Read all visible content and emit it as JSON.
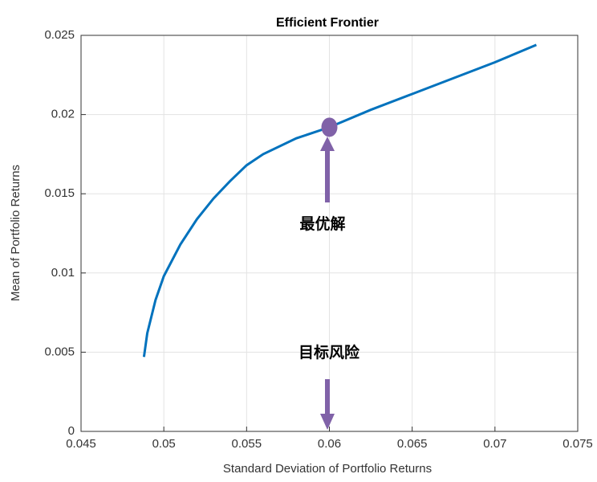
{
  "chart_data": {
    "type": "line",
    "title": "Efficient Frontier",
    "xlabel": "Standard Deviation of Portfolio Returns",
    "ylabel": "Mean of Portfolio Returns",
    "x": [
      0.0488,
      0.049,
      0.0495,
      0.05,
      0.051,
      0.052,
      0.053,
      0.054,
      0.055,
      0.056,
      0.058,
      0.06,
      0.0625,
      0.065,
      0.0675,
      0.07,
      0.0725
    ],
    "values": [
      0.0047,
      0.0062,
      0.0083,
      0.0098,
      0.0118,
      0.0134,
      0.0147,
      0.0158,
      0.0168,
      0.0175,
      0.0185,
      0.0192,
      0.0203,
      0.0213,
      0.0223,
      0.0233,
      0.0244
    ],
    "color": "#0072bd",
    "highlight": {
      "x": 0.06,
      "y": 0.0192,
      "color": "#8062a8"
    },
    "annotations": [
      "最优解",
      "目标风险"
    ],
    "xlim": [
      0.045,
      0.075
    ],
    "xticks": [
      0.045,
      0.05,
      0.055,
      0.06,
      0.065,
      0.07,
      0.075
    ],
    "ylim": [
      0,
      0.025
    ],
    "yticks": [
      0,
      0.005,
      0.01,
      0.015,
      0.02,
      0.025
    ],
    "grid": true
  }
}
